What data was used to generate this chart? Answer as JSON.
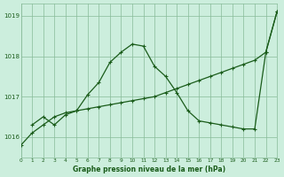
{
  "title": "Graphe pression niveau de la mer (hPa)",
  "background_color": "#cceedd",
  "grid_color": "#88bb99",
  "line_color": "#1a5c1a",
  "x_hours": [
    0,
    1,
    2,
    3,
    4,
    5,
    6,
    7,
    8,
    9,
    10,
    11,
    12,
    13,
    14,
    15,
    16,
    17,
    18,
    19,
    20,
    21,
    22,
    23
  ],
  "line1_y": [
    1015.8,
    1016.1,
    1016.3,
    1016.5,
    1016.6,
    1016.65,
    1016.7,
    1016.75,
    1016.8,
    1016.85,
    1016.9,
    1016.95,
    1017.0,
    1017.1,
    1017.2,
    1017.3,
    1017.4,
    1017.5,
    1017.6,
    1017.7,
    1017.8,
    1017.9,
    1018.1,
    1019.1
  ],
  "line2_y": [
    null,
    1016.3,
    1016.5,
    1016.3,
    1016.55,
    1016.65,
    1017.05,
    1017.35,
    1017.85,
    1018.1,
    1018.3,
    1018.25,
    1017.75,
    1017.5,
    1017.1,
    1016.65,
    1016.4,
    1016.35,
    1016.3,
    1016.25,
    1016.2,
    1016.2,
    1018.1,
    1019.1
  ],
  "ylim": [
    1015.5,
    1019.3
  ],
  "yticks": [
    1016,
    1017,
    1018,
    1019
  ],
  "xlim": [
    0,
    23
  ]
}
